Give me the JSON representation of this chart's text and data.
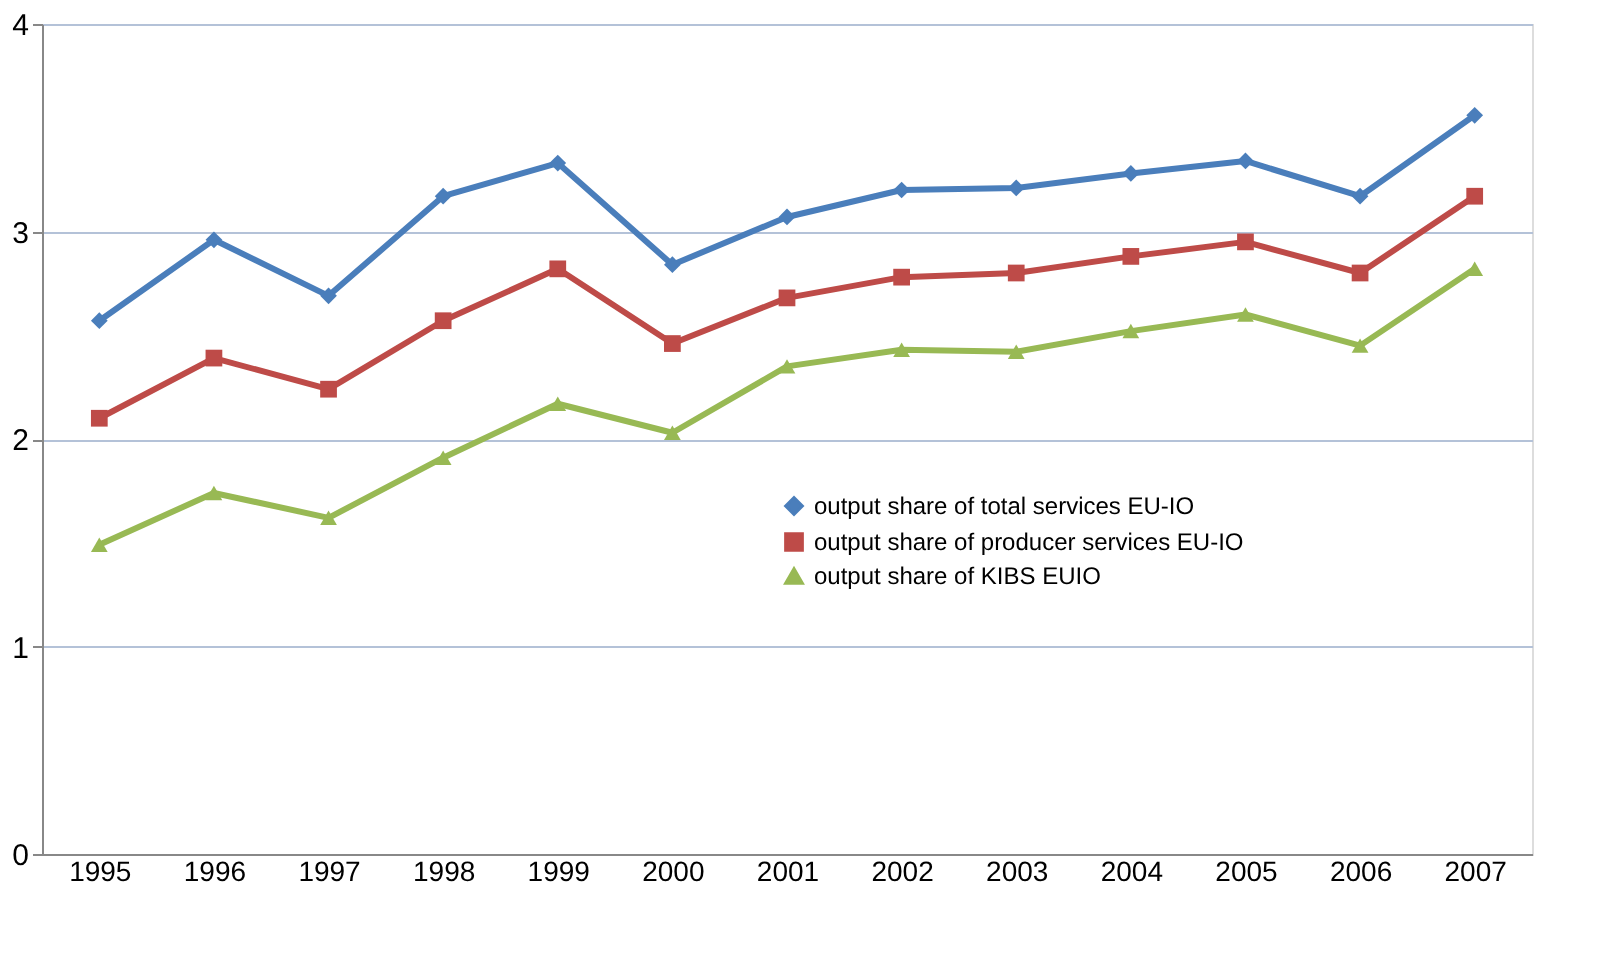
{
  "chart_data": {
    "type": "line",
    "categories": [
      "1995",
      "1996",
      "1997",
      "1998",
      "1999",
      "2000",
      "2001",
      "2002",
      "2003",
      "2004",
      "2005",
      "2006",
      "2007"
    ],
    "series": [
      {
        "name": "output share of total services  EU-IO",
        "color": "#4a7ebb",
        "marker": "diamond",
        "values": [
          2.57,
          2.96,
          2.69,
          3.17,
          3.33,
          2.84,
          3.07,
          3.2,
          3.21,
          3.28,
          3.34,
          3.17,
          3.56
        ]
      },
      {
        "name": "output share of producer services EU-IO",
        "color": "#be4b48",
        "marker": "square",
        "values": [
          2.1,
          2.39,
          2.24,
          2.57,
          2.82,
          2.46,
          2.68,
          2.78,
          2.8,
          2.88,
          2.95,
          2.8,
          3.17
        ]
      },
      {
        "name": "output share of KIBS EUIO",
        "color": "#98b954",
        "marker": "triangle",
        "values": [
          1.49,
          1.74,
          1.62,
          1.91,
          2.17,
          2.03,
          2.35,
          2.43,
          2.42,
          2.52,
          2.6,
          2.45,
          2.82
        ]
      }
    ],
    "ylim": [
      0,
      4
    ],
    "yticks": [
      0,
      1,
      2,
      3,
      4
    ],
    "grid": "y",
    "legend": "right",
    "line_style": "solid"
  }
}
